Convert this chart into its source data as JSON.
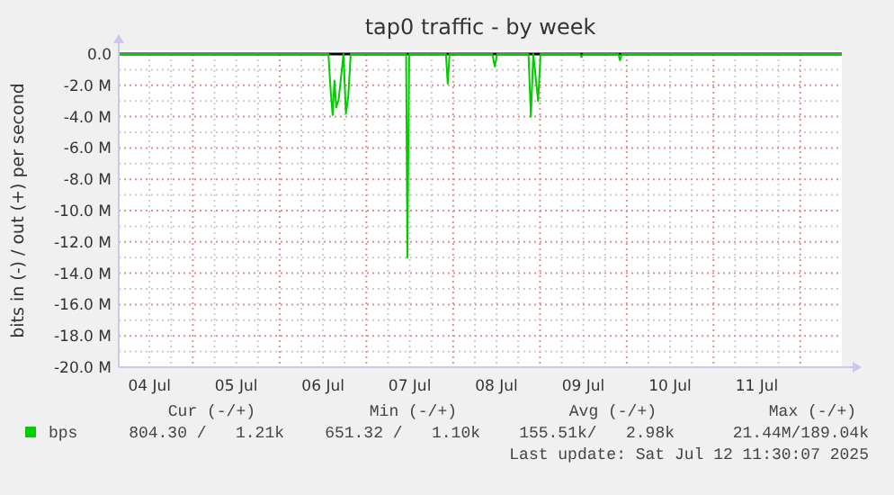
{
  "chart_data": {
    "type": "line",
    "title": "tap0 traffic - by week",
    "ylabel": "bits in (-) / out (+) per second",
    "xlim": [
      "2025-07-04T03:30",
      "2025-07-12T11:30"
    ],
    "xticks": [
      {
        "value": "2025-07-04T12:00",
        "label": "04 Jul"
      },
      {
        "value": "2025-07-05T00:00",
        "label": null
      },
      {
        "value": "2025-07-05T12:00",
        "label": "05 Jul"
      },
      {
        "value": "2025-07-06T00:00",
        "label": null
      },
      {
        "value": "2025-07-06T12:00",
        "label": "06 Jul"
      },
      {
        "value": "2025-07-07T00:00",
        "label": null
      },
      {
        "value": "2025-07-07T12:00",
        "label": "07 Jul"
      },
      {
        "value": "2025-07-08T00:00",
        "label": null
      },
      {
        "value": "2025-07-08T12:00",
        "label": "08 Jul"
      },
      {
        "value": "2025-07-09T00:00",
        "label": null
      },
      {
        "value": "2025-07-09T12:00",
        "label": "09 Jul"
      },
      {
        "value": "2025-07-10T00:00",
        "label": null
      },
      {
        "value": "2025-07-10T12:00",
        "label": "10 Jul"
      },
      {
        "value": "2025-07-11T00:00",
        "label": null
      },
      {
        "value": "2025-07-11T12:00",
        "label": "11 Jul"
      },
      {
        "value": "2025-07-12T00:00",
        "label": null
      }
    ],
    "ylim": [
      -20,
      0
    ],
    "yticks": [
      {
        "value": 0,
        "label": "0.0"
      },
      {
        "value": -2,
        "label": "-2.0 M"
      },
      {
        "value": -4,
        "label": "-4.0 M"
      },
      {
        "value": -6,
        "label": "-6.0 M"
      },
      {
        "value": -8,
        "label": "-8.0 M"
      },
      {
        "value": -10,
        "label": "-10.0 M"
      },
      {
        "value": -12,
        "label": "-12.0 M"
      },
      {
        "value": -14,
        "label": "-14.0 M"
      },
      {
        "value": -16,
        "label": "-16.0 M"
      },
      {
        "value": -18,
        "label": "-18.0 M"
      },
      {
        "value": -20,
        "label": "-20.0 M"
      }
    ],
    "grid": true,
    "legend": "bottom",
    "line_style": "solid",
    "ref_lines": [
      {
        "axis": "y",
        "value": 0,
        "color": "#000000"
      }
    ],
    "series": [
      {
        "name": "bps",
        "color": "#00cc00",
        "x": [
          "2025-07-04T03:30",
          "2025-07-06T13:30",
          "2025-07-06T14:10",
          "2025-07-06T14:40",
          "2025-07-06T15:10",
          "2025-07-06T15:40",
          "2025-07-06T16:20",
          "2025-07-06T17:10",
          "2025-07-06T17:40",
          "2025-07-06T18:20",
          "2025-07-06T19:00",
          "2025-07-06T19:40",
          "2025-07-07T11:00",
          "2025-07-07T11:20",
          "2025-07-07T11:50",
          "2025-07-07T22:00",
          "2025-07-07T22:30",
          "2025-07-07T23:00",
          "2025-07-08T10:50",
          "2025-07-08T11:30",
          "2025-07-08T12:10",
          "2025-07-08T20:50",
          "2025-07-08T21:30",
          "2025-07-08T22:10",
          "2025-07-08T22:50",
          "2025-07-08T23:30",
          "2025-07-09T00:10",
          "2025-07-09T11:00",
          "2025-07-09T11:30",
          "2025-07-09T12:00",
          "2025-07-09T21:40",
          "2025-07-09T22:10",
          "2025-07-09T22:40",
          "2025-07-12T11:30"
        ],
        "values": [
          0,
          0,
          -2.5,
          -3.9,
          -1.7,
          -3.4,
          -2.9,
          -1.1,
          0,
          -3.8,
          -2.7,
          0,
          0,
          -13.0,
          0,
          0,
          -1.9,
          0,
          0,
          -0.8,
          0,
          0,
          -4.0,
          0,
          -1.5,
          -3.0,
          0,
          0,
          -0.2,
          0,
          0,
          -0.4,
          0,
          0
        ]
      }
    ],
    "annotations": [
      "Cur (-/+)",
      "Min (-/+)",
      "Avg (-/+)",
      "Max (-/+)",
      "804.30 /   1.21k",
      "651.32 /   1.10k",
      "155.51k/   2.98k",
      "21.44M/189.04k",
      "Last update: Sat Jul 12 11:30:07 2025"
    ]
  }
}
